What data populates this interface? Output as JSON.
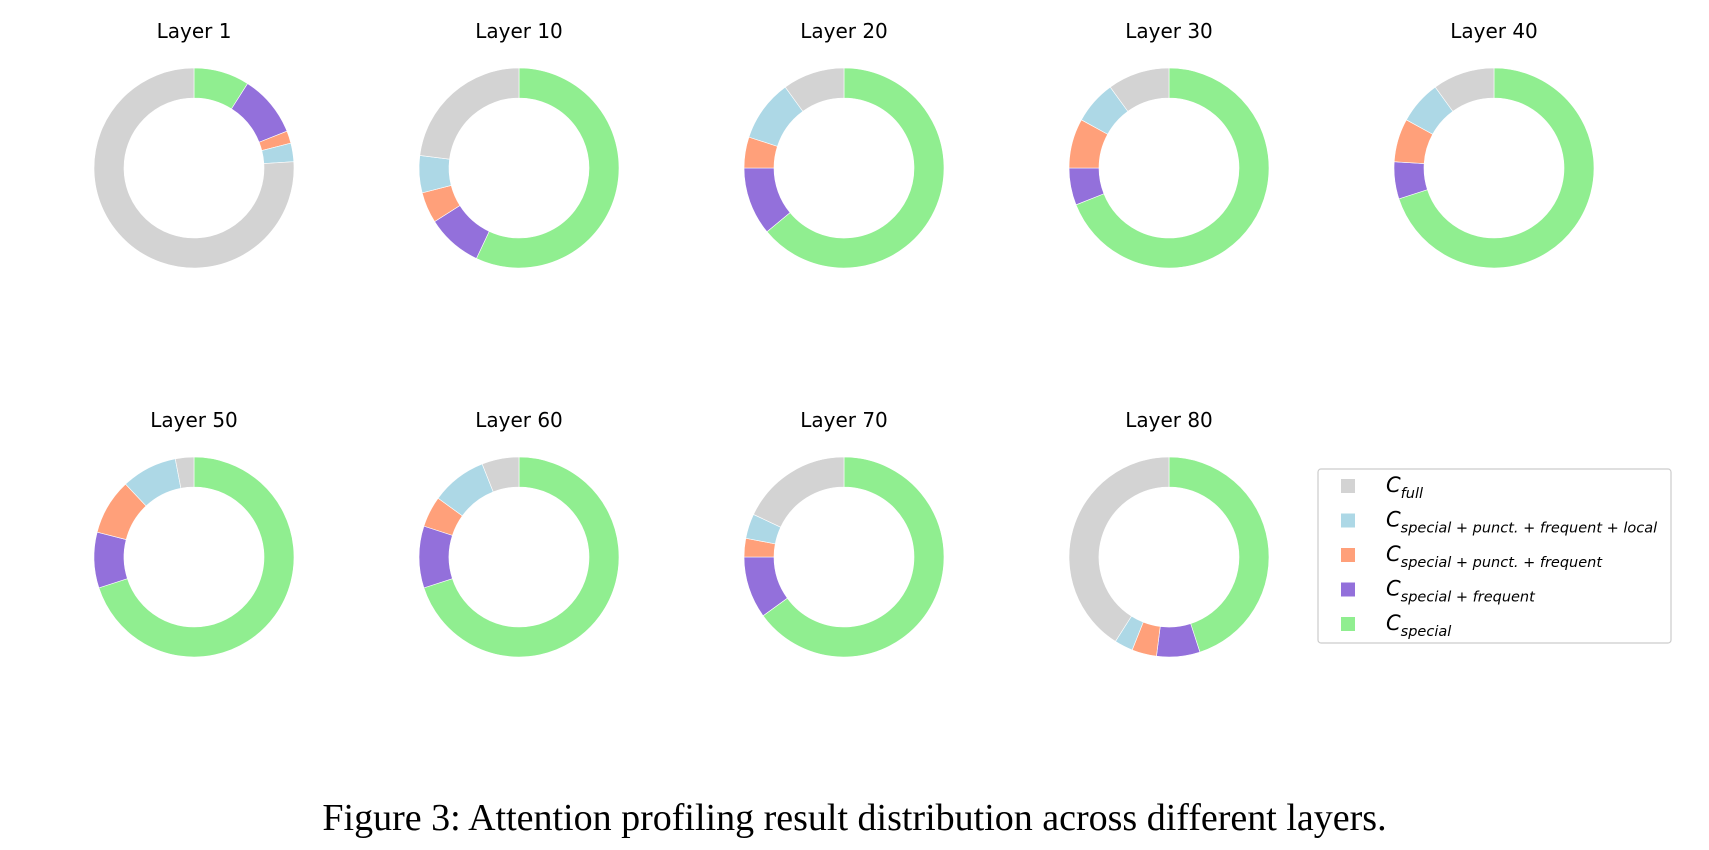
{
  "caption": "Figure 3: Attention profiling result distribution across different layers.",
  "chart_data": {
    "type": "pie",
    "donut": true,
    "title": "",
    "categories": [
      "C_special",
      "C_special + frequent",
      "C_special + punct. + frequent",
      "C_special + punct. + frequent + local",
      "C_full"
    ],
    "colors": {
      "C_full": "#d3d3d3",
      "C_special + punct. + frequent + local": "#add8e6",
      "C_special + punct. + frequent": "#ffa07a",
      "C_special + frequent": "#9370db",
      "C_special": "#90ee90"
    },
    "legend": {
      "placement": "right of bottom row",
      "entries": [
        {
          "key": "C_full",
          "base": "C",
          "sub": "full"
        },
        {
          "key": "C_special + punct. + frequent + local",
          "base": "C",
          "sub": "special + punct. + frequent + local"
        },
        {
          "key": "C_special + punct. + frequent",
          "base": "C",
          "sub": "special + punct. + frequent"
        },
        {
          "key": "C_special + frequent",
          "base": "C",
          "sub": "special + frequent"
        },
        {
          "key": "C_special",
          "base": "C",
          "sub": "special"
        }
      ]
    },
    "panels": [
      {
        "title": "Layer 1",
        "values": [
          0.09,
          0.1,
          0.02,
          0.03,
          0.76
        ]
      },
      {
        "title": "Layer 10",
        "values": [
          0.57,
          0.09,
          0.05,
          0.06,
          0.23
        ]
      },
      {
        "title": "Layer 20",
        "values": [
          0.64,
          0.11,
          0.05,
          0.1,
          0.1
        ]
      },
      {
        "title": "Layer 30",
        "values": [
          0.69,
          0.06,
          0.08,
          0.07,
          0.1
        ]
      },
      {
        "title": "Layer 40",
        "values": [
          0.7,
          0.06,
          0.07,
          0.07,
          0.1
        ]
      },
      {
        "title": "Layer 50",
        "values": [
          0.7,
          0.09,
          0.09,
          0.09,
          0.03
        ]
      },
      {
        "title": "Layer 60",
        "values": [
          0.7,
          0.1,
          0.05,
          0.09,
          0.06
        ]
      },
      {
        "title": "Layer 70",
        "values": [
          0.65,
          0.1,
          0.03,
          0.04,
          0.18
        ]
      },
      {
        "title": "Layer 80",
        "values": [
          0.45,
          0.07,
          0.04,
          0.03,
          0.41
        ]
      }
    ]
  }
}
